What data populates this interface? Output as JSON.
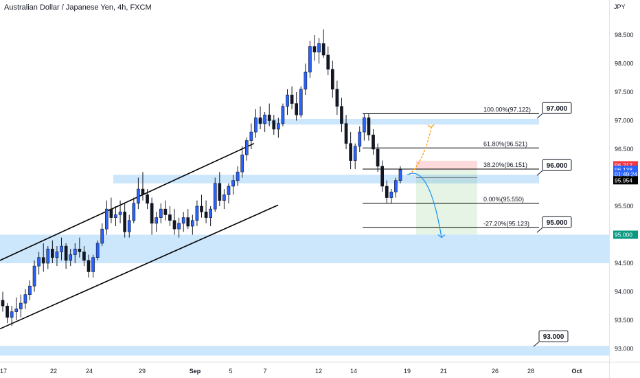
{
  "header": {
    "title": "Australian Dollar / Japanese Yen, 4h, FXCM",
    "currency": "JPY"
  },
  "chart_data": {
    "type": "candlestick",
    "title": "Australian Dollar / Japanese Yen, 4h, FXCM",
    "ylabel": "JPY",
    "ylim": [
      92.8,
      98.8
    ],
    "y_ticks": [
      "98.500",
      "98.000",
      "97.500",
      "97.000",
      "96.500",
      "96.000",
      "95.500",
      "95.000",
      "94.500",
      "94.000",
      "93.500",
      "93.000"
    ],
    "x_ticks": [
      "17",
      "22",
      "24",
      "29",
      "Sep",
      "5",
      "7",
      "12",
      "14",
      "19",
      "21",
      "26",
      "28",
      "Oct"
    ],
    "colors": {
      "up": "#2962ff",
      "down": "#131722",
      "zone": "#bbdefb",
      "zone_text": "#131722"
    },
    "support_resistance": [
      "97.000",
      "96.000",
      "95.000",
      "93.000"
    ],
    "fibonacci": [
      {
        "label": "100.00%(97.122)",
        "value": 97.122
      },
      {
        "label": "61.80%(96.521)",
        "value": 96.521
      },
      {
        "label": "38.20%(96.151)",
        "value": 96.151
      },
      {
        "label": "0.00%(95.550)",
        "value": 95.55
      },
      {
        "label": "-27.20%(95.123)",
        "value": 95.123
      }
    ],
    "price_labels": [
      {
        "text": "96.217",
        "value": 96.217,
        "color": "#f23645"
      },
      {
        "text": "96.138",
        "value": 96.138,
        "color": "#2962ff"
      },
      {
        "text": "01:49:24",
        "value": 96.06,
        "color": "#2962ff"
      },
      {
        "text": "95.954",
        "value": 95.954,
        "color": "#000000"
      },
      {
        "text": "95.000",
        "value": 95.0,
        "color": "#089981"
      }
    ],
    "position": {
      "entry": 96.138,
      "stop": 96.217,
      "target": 95.0
    },
    "candles": [
      [
        93.85,
        94.0,
        93.65,
        93.75
      ],
      [
        93.75,
        93.8,
        93.45,
        93.55
      ],
      [
        93.55,
        93.75,
        93.4,
        93.65
      ],
      [
        93.65,
        93.9,
        93.5,
        93.7
      ],
      [
        93.7,
        93.95,
        93.55,
        93.8
      ],
      [
        93.8,
        94.05,
        93.7,
        93.95
      ],
      [
        93.95,
        94.2,
        93.85,
        94.1
      ],
      [
        94.1,
        94.55,
        94.0,
        94.45
      ],
      [
        94.45,
        94.7,
        94.3,
        94.6
      ],
      [
        94.6,
        94.85,
        94.35,
        94.5
      ],
      [
        94.5,
        94.8,
        94.4,
        94.75
      ],
      [
        94.75,
        94.9,
        94.5,
        94.6
      ],
      [
        94.6,
        94.8,
        94.45,
        94.7
      ],
      [
        94.7,
        94.95,
        94.55,
        94.8
      ],
      [
        94.8,
        94.85,
        94.4,
        94.55
      ],
      [
        94.55,
        94.75,
        94.45,
        94.65
      ],
      [
        94.65,
        94.85,
        94.5,
        94.75
      ],
      [
        94.75,
        94.95,
        94.6,
        94.7
      ],
      [
        94.7,
        94.8,
        94.45,
        94.55
      ],
      [
        94.55,
        94.65,
        94.25,
        94.35
      ],
      [
        94.35,
        94.65,
        94.25,
        94.6
      ],
      [
        94.6,
        94.9,
        94.55,
        94.85
      ],
      [
        94.85,
        95.2,
        94.8,
        95.1
      ],
      [
        95.1,
        95.6,
        95.0,
        95.45
      ],
      [
        95.45,
        95.65,
        95.2,
        95.3
      ],
      [
        95.3,
        95.5,
        95.15,
        95.35
      ],
      [
        95.35,
        95.6,
        95.2,
        95.4
      ],
      [
        95.4,
        95.55,
        94.95,
        95.05
      ],
      [
        95.05,
        95.35,
        94.95,
        95.25
      ],
      [
        95.25,
        95.65,
        95.2,
        95.55
      ],
      [
        95.55,
        96.0,
        95.45,
        95.8
      ],
      [
        95.8,
        96.1,
        95.6,
        95.7
      ],
      [
        95.7,
        95.8,
        95.45,
        95.55
      ],
      [
        95.55,
        95.65,
        95.0,
        95.2
      ],
      [
        95.2,
        95.4,
        95.05,
        95.3
      ],
      [
        95.3,
        95.55,
        95.2,
        95.45
      ],
      [
        95.45,
        95.6,
        95.25,
        95.35
      ],
      [
        95.35,
        95.5,
        95.15,
        95.25
      ],
      [
        95.25,
        95.45,
        95.0,
        95.1
      ],
      [
        95.1,
        95.3,
        94.95,
        95.2
      ],
      [
        95.2,
        95.4,
        95.05,
        95.3
      ],
      [
        95.3,
        95.45,
        95.1,
        95.15
      ],
      [
        95.15,
        95.35,
        95.0,
        95.25
      ],
      [
        95.25,
        95.6,
        95.15,
        95.5
      ],
      [
        95.5,
        95.7,
        95.3,
        95.4
      ],
      [
        95.4,
        95.6,
        95.2,
        95.3
      ],
      [
        95.3,
        95.5,
        95.15,
        95.45
      ],
      [
        95.45,
        96.0,
        95.4,
        95.9
      ],
      [
        95.9,
        96.1,
        95.5,
        95.6
      ],
      [
        95.6,
        95.8,
        95.45,
        95.7
      ],
      [
        95.7,
        95.9,
        95.55,
        95.85
      ],
      [
        95.85,
        96.05,
        95.7,
        95.95
      ],
      [
        95.95,
        96.2,
        95.85,
        96.1
      ],
      [
        96.1,
        96.55,
        96.0,
        96.4
      ],
      [
        96.4,
        96.7,
        96.3,
        96.65
      ],
      [
        96.65,
        96.95,
        96.5,
        96.8
      ],
      [
        96.8,
        97.2,
        96.7,
        97.05
      ],
      [
        97.05,
        97.25,
        96.85,
        96.95
      ],
      [
        96.95,
        97.15,
        96.8,
        97.1
      ],
      [
        97.1,
        97.3,
        96.9,
        97.0
      ],
      [
        97.0,
        97.1,
        96.75,
        96.85
      ],
      [
        96.85,
        97.05,
        96.7,
        96.95
      ],
      [
        96.95,
        97.3,
        96.9,
        97.25
      ],
      [
        97.25,
        97.55,
        97.1,
        97.45
      ],
      [
        97.45,
        97.6,
        97.2,
        97.3
      ],
      [
        97.3,
        97.5,
        97.0,
        97.1
      ],
      [
        97.1,
        97.6,
        97.05,
        97.55
      ],
      [
        97.55,
        98.0,
        97.45,
        97.85
      ],
      [
        97.85,
        98.4,
        97.75,
        98.3
      ],
      [
        98.3,
        98.5,
        98.05,
        98.2
      ],
      [
        98.2,
        98.45,
        98.0,
        98.35
      ],
      [
        98.35,
        98.6,
        98.1,
        98.15
      ],
      [
        98.15,
        98.3,
        97.8,
        97.9
      ],
      [
        97.9,
        98.05,
        97.4,
        97.55
      ],
      [
        97.55,
        97.7,
        97.1,
        97.25
      ],
      [
        97.25,
        97.4,
        96.8,
        96.95
      ],
      [
        96.95,
        97.1,
        96.5,
        96.6
      ],
      [
        96.6,
        96.8,
        96.15,
        96.3
      ],
      [
        96.3,
        96.6,
        96.15,
        96.55
      ],
      [
        96.55,
        96.9,
        96.45,
        96.8
      ],
      [
        96.8,
        97.12,
        96.65,
        97.05
      ],
      [
        97.05,
        97.12,
        96.65,
        96.75
      ],
      [
        96.75,
        96.85,
        96.4,
        96.5
      ],
      [
        96.5,
        96.6,
        96.1,
        96.2
      ],
      [
        96.2,
        96.3,
        95.75,
        95.85
      ],
      [
        95.85,
        95.95,
        95.55,
        95.65
      ],
      [
        95.65,
        95.8,
        95.55,
        95.75
      ],
      [
        95.75,
        96.0,
        95.65,
        95.95
      ],
      [
        95.95,
        96.2,
        95.9,
        96.14
      ]
    ]
  }
}
